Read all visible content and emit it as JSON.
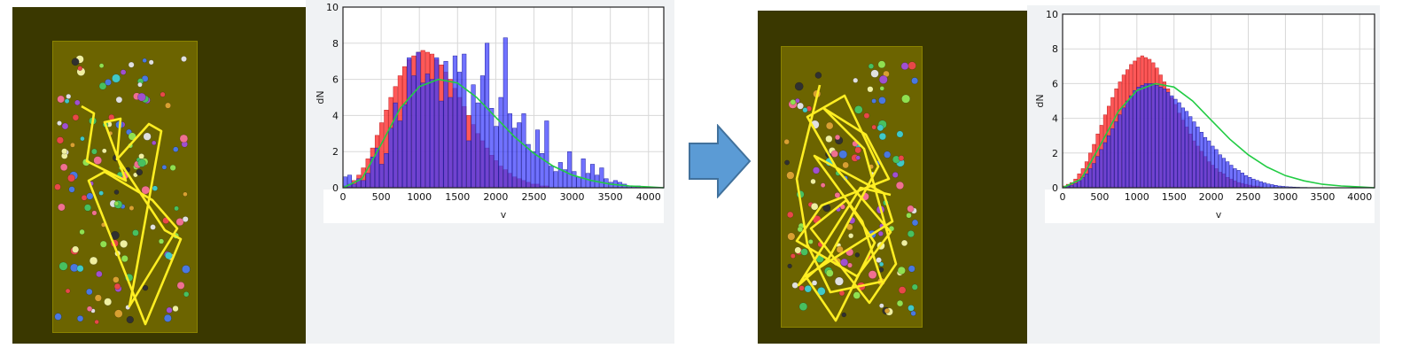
{
  "colors": {
    "red_series": "#ff3b3b",
    "blue_series": "#3a3cff",
    "green_curve": "#22cc44",
    "trajectory": "#ffee22",
    "arrow": "#5b9bd5"
  },
  "arrow_icon": "right-arrow-icon",
  "charts": [
    {
      "type": "bar",
      "xlabel": "v",
      "ylabel": "dN",
      "xlim": [
        0,
        4200
      ],
      "ylim": [
        0,
        10
      ],
      "x_ticks": [
        "0",
        "500",
        "1000",
        "1500",
        "2000",
        "2500",
        "3000",
        "3500",
        "4000"
      ],
      "y_ticks": [
        "0",
        "2",
        "4",
        "6",
        "8",
        "10"
      ],
      "grid": true,
      "bin_width": 60,
      "red_values": [
        0.1,
        0.2,
        0.4,
        0.7,
        1.1,
        1.6,
        2.2,
        2.9,
        3.6,
        4.3,
        5.0,
        5.6,
        6.2,
        6.7,
        7.1,
        7.3,
        7.5,
        7.6,
        7.5,
        7.4,
        7.1,
        6.8,
        6.4,
        6.0,
        5.5,
        5.0,
        4.5,
        4.0,
        3.5,
        3.0,
        2.6,
        2.2,
        1.8,
        1.5,
        1.2,
        1.0,
        0.8,
        0.6,
        0.5,
        0.4,
        0.3,
        0.2,
        0.2,
        0.1,
        0.1
      ],
      "blue_values": [
        0.6,
        0.7,
        0.2,
        0.5,
        0.4,
        0.8,
        1.7,
        2.2,
        1.3,
        1.9,
        3.3,
        4.7,
        3.7,
        4.6,
        7.2,
        6.2,
        7.5,
        5.8,
        6.3,
        6.0,
        7.2,
        4.8,
        7.0,
        5.0,
        7.3,
        6.4,
        7.4,
        2.6,
        5.7,
        4.7,
        6.2,
        8.0,
        4.4,
        3.4,
        5.0,
        8.3,
        4.1,
        3.3,
        3.6,
        4.1,
        2.4,
        2.0,
        3.2,
        1.9,
        3.7,
        1.2,
        0.9,
        1.4,
        1.0,
        2.0,
        0.9,
        0.6,
        1.6,
        0.8,
        1.3,
        0.7,
        1.1,
        0.5,
        0.3,
        0.4,
        0.3,
        0.2,
        0.1,
        0.1,
        0.1
      ],
      "green_curve": [
        [
          0,
          0
        ],
        [
          250,
          0.5
        ],
        [
          500,
          2.4
        ],
        [
          750,
          4.4
        ],
        [
          1000,
          5.6
        ],
        [
          1250,
          6.0
        ],
        [
          1500,
          5.8
        ],
        [
          1750,
          5.0
        ],
        [
          2000,
          3.9
        ],
        [
          2250,
          2.8
        ],
        [
          2500,
          1.9
        ],
        [
          2750,
          1.2
        ],
        [
          3000,
          0.7
        ],
        [
          3250,
          0.4
        ],
        [
          3500,
          0.2
        ],
        [
          3750,
          0.1
        ],
        [
          4000,
          0.05
        ],
        [
          4200,
          0.0
        ]
      ]
    },
    {
      "type": "bar",
      "xlabel": "v",
      "ylabel": "dN",
      "xlim": [
        0,
        4200
      ],
      "ylim": [
        0,
        10
      ],
      "x_ticks": [
        "0",
        "500",
        "1000",
        "1500",
        "2000",
        "2500",
        "3000",
        "3500",
        "4000"
      ],
      "y_ticks": [
        "0",
        "2",
        "4",
        "6",
        "8",
        "10"
      ],
      "grid": true,
      "bin_width": 50,
      "red_values": [
        0.1,
        0.2,
        0.3,
        0.5,
        0.8,
        1.1,
        1.5,
        2.0,
        2.5,
        3.1,
        3.6,
        4.2,
        4.7,
        5.2,
        5.7,
        6.1,
        6.5,
        6.8,
        7.1,
        7.3,
        7.5,
        7.6,
        7.5,
        7.4,
        7.2,
        6.9,
        6.5,
        6.1,
        5.7,
        5.2,
        4.8,
        4.3,
        3.9,
        3.5,
        3.1,
        2.7,
        2.4,
        2.1,
        1.8,
        1.5,
        1.3,
        1.1,
        0.9,
        0.8,
        0.6,
        0.5,
        0.4,
        0.3,
        0.25,
        0.2,
        0.15,
        0.1,
        0.1,
        0.05
      ],
      "blue_values": [
        0.05,
        0.1,
        0.15,
        0.25,
        0.4,
        0.6,
        0.8,
        1.1,
        1.4,
        1.8,
        2.2,
        2.6,
        3.0,
        3.4,
        3.8,
        4.2,
        4.6,
        5.0,
        5.3,
        5.6,
        5.8,
        5.9,
        6.0,
        6.0,
        6.0,
        5.9,
        5.8,
        5.7,
        5.5,
        5.3,
        5.1,
        4.9,
        4.6,
        4.4,
        4.1,
        3.8,
        3.5,
        3.2,
        2.9,
        2.7,
        2.4,
        2.2,
        1.9,
        1.7,
        1.5,
        1.3,
        1.1,
        1.0,
        0.85,
        0.7,
        0.6,
        0.5,
        0.42,
        0.35,
        0.28,
        0.22,
        0.18,
        0.14,
        0.1,
        0.08,
        0.06,
        0.05,
        0.04,
        0.03,
        0.02,
        0.02,
        0.01,
        0.01,
        0.01,
        0.01,
        0.01,
        0.01,
        0.01,
        0.01,
        0.01,
        0.01,
        0.01,
        0.01,
        0.01,
        0.01,
        0.01,
        0.01,
        0.01,
        0.01
      ],
      "green_curve": [
        [
          0,
          0
        ],
        [
          250,
          0.5
        ],
        [
          500,
          2.4
        ],
        [
          750,
          4.4
        ],
        [
          1000,
          5.6
        ],
        [
          1250,
          6.0
        ],
        [
          1500,
          5.8
        ],
        [
          1750,
          5.0
        ],
        [
          2000,
          3.9
        ],
        [
          2250,
          2.8
        ],
        [
          2500,
          1.9
        ],
        [
          2750,
          1.2
        ],
        [
          3000,
          0.7
        ],
        [
          3250,
          0.4
        ],
        [
          3500,
          0.2
        ],
        [
          3750,
          0.1
        ],
        [
          4000,
          0.05
        ],
        [
          4200,
          0.0
        ]
      ]
    }
  ]
}
